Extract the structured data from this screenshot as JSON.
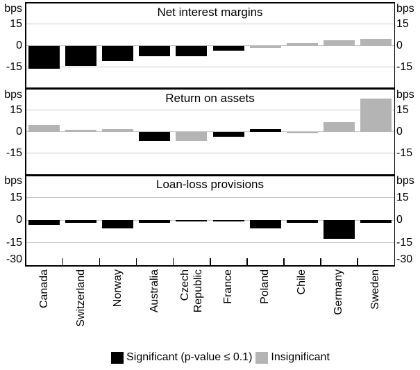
{
  "chart_data": {
    "type": "bar",
    "unit": "bps",
    "ylim": [
      -30,
      30
    ],
    "yticks": [
      15,
      0,
      -15
    ],
    "ytick_bottom_label": "-30",
    "ytick_top_label": "bps",
    "grid": "on",
    "legend_position": "bottom-center",
    "categories": [
      "Canada",
      "Switzerland",
      "Norway",
      "Australia",
      "Czech\nRepublic",
      "France",
      "Poland",
      "Chile",
      "Germany",
      "Sweden"
    ],
    "panels": [
      {
        "title": "Net interest margins",
        "values": [
          -16,
          -14,
          -11,
          -7.5,
          -7.5,
          -3.5,
          -1.5,
          2,
          4,
          4.5
        ],
        "significant": [
          true,
          true,
          true,
          true,
          true,
          true,
          false,
          false,
          false,
          false
        ]
      },
      {
        "title": "Return on assets",
        "values": [
          4.5,
          1.5,
          2,
          -6.5,
          -6.5,
          -3.5,
          2,
          -1,
          6.5,
          23
        ],
        "significant": [
          false,
          false,
          false,
          true,
          false,
          true,
          true,
          false,
          false,
          false
        ]
      },
      {
        "title": "Loan-loss provisions",
        "values": [
          -3,
          -1.5,
          -5.5,
          -1.5,
          -1,
          -1,
          -5.5,
          -1.5,
          -12.5,
          -1.5
        ],
        "significant": [
          true,
          true,
          true,
          true,
          true,
          true,
          true,
          true,
          true,
          true
        ]
      }
    ],
    "legend": [
      {
        "label": "Significant (p-value ≤ 0.1)",
        "color": "#000000"
      },
      {
        "label": "Insignificant",
        "color": "#b4b4b4"
      }
    ]
  },
  "colors": {
    "significant": "#000000",
    "insignificant": "#b4b4b4",
    "gridline": "#c8c8c8",
    "frame": "#000000",
    "background": "#ffffff"
  }
}
